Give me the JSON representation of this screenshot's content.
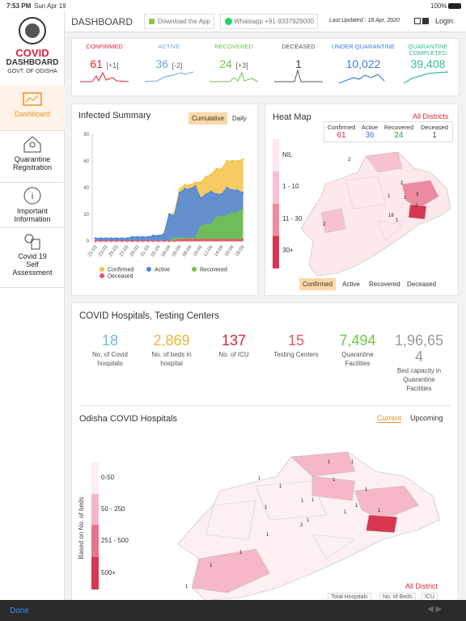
{
  "status_bar": {
    "time": "7:53 PM",
    "date": "Sun Apr 19",
    "battery": "100%"
  },
  "sidebar": {
    "logo_title": "COVID",
    "logo_subtitle": "DASHBOARD",
    "logo_caption": "GOVT. OF ODISHA",
    "nav": [
      "Dashboard",
      "Quarantine Registration",
      "Important Information",
      "Covid 19 Self Assessment"
    ]
  },
  "header": {
    "title": "DASHBOARD",
    "download": "Download the App",
    "whatsapp": "Whatsapp +91-9337929000",
    "updated": "Last Updated : 18 Apr, 2020",
    "login": "Login"
  },
  "stats": [
    {
      "label": "CONFIRMED",
      "value": "61",
      "delta": "[+1]"
    },
    {
      "label": "ACTIVE",
      "value": "36",
      "delta": "[-2]"
    },
    {
      "label": "RECOVERED",
      "value": "24",
      "delta": "[+3]"
    },
    {
      "label": "DECEASED",
      "value": "1"
    },
    {
      "label": "UNDER QUARANTINE",
      "value": "10,022"
    },
    {
      "label": "QUARANTINE COMPLETED",
      "value": "39,408"
    }
  ],
  "infected_summary_tabs": [
    "Cumulative",
    "Daily"
  ],
  "chart_data": {
    "type": "area",
    "title": "Infected Summary",
    "categories": [
      "21-03",
      null,
      "23-03",
      null,
      "25-03",
      null,
      "27-03",
      null,
      "29-03",
      null,
      "31-03",
      null,
      "02-04",
      null,
      "04-04",
      null,
      "06-04",
      null,
      "08-04",
      null,
      "10-04",
      null,
      "12-04",
      null,
      "14-04",
      null,
      "16-04",
      null,
      "18-04"
    ],
    "series": [
      {
        "name": "Confirmed",
        "color": "#f3c246",
        "values": [
          2,
          2,
          2,
          2,
          2,
          2,
          2,
          3,
          3,
          3,
          3,
          4,
          4,
          5,
          20,
          21,
          39,
          42,
          42,
          44,
          44,
          48,
          50,
          54,
          54,
          60,
          60,
          60,
          61
        ]
      },
      {
        "name": "Active",
        "color": "#4a86e0",
        "values": [
          2,
          2,
          2,
          2,
          2,
          2,
          2,
          3,
          3,
          3,
          3,
          4,
          4,
          5,
          20,
          19,
          36,
          39,
          39,
          41,
          32,
          35,
          37,
          35,
          35,
          40,
          38,
          38,
          36
        ]
      },
      {
        "name": "Recovered",
        "color": "#72c348",
        "values": [
          0,
          0,
          0,
          0,
          0,
          0,
          0,
          0,
          0,
          0,
          0,
          0,
          0,
          0,
          0,
          2,
          2,
          2,
          2,
          2,
          11,
          12,
          12,
          18,
          18,
          19,
          21,
          21,
          24
        ]
      },
      {
        "name": "Deceased",
        "color": "#e8556a",
        "values": [
          0,
          0,
          0,
          0,
          0,
          0,
          0,
          0,
          0,
          0,
          0,
          0,
          0,
          0,
          0,
          0,
          1,
          1,
          1,
          1,
          1,
          1,
          1,
          1,
          1,
          1,
          1,
          1,
          1
        ]
      }
    ],
    "ylim": [
      0,
      80
    ],
    "yticks": [
      0,
      20,
      40,
      60,
      80
    ],
    "grid": false
  },
  "heat_map": {
    "title": "Heat Map",
    "link": "All Districts",
    "stats": [
      {
        "label": "Confirmed",
        "value": "61"
      },
      {
        "label": "Active",
        "value": "36"
      },
      {
        "label": "Recovered",
        "value": "24"
      },
      {
        "label": "Deceased",
        "value": "1"
      }
    ],
    "legend": [
      "NIL",
      "1 - 10",
      "11 - 30",
      "30+"
    ],
    "map_labels": [
      "2",
      "1",
      "2",
      "3",
      "1",
      "2",
      "18",
      "1",
      "2"
    ],
    "tabs": [
      "Confirmed",
      "Active",
      "Recovered",
      "Deceased"
    ]
  },
  "hospitals": {
    "title": "COVID Hospitals, Testing Centers",
    "items": [
      {
        "value": "18",
        "label": "No. of Covid hospitals"
      },
      {
        "value": "2,869",
        "label": "No. of beds in hospital"
      },
      {
        "value": "137",
        "label": "No. of ICU"
      },
      {
        "value": "15",
        "label": "Testing Centers"
      },
      {
        "value": "7,494",
        "label": "Quarantine Facilities"
      },
      {
        "value": "1,96,654",
        "label": "Bed capacity in Quarantine Facilities"
      }
    ],
    "map_title": "Odisha COVID Hospitals",
    "map_tabs": [
      "Current",
      "Upcoming"
    ],
    "legend_title": "Based on No. of beds",
    "legend": [
      "0-50",
      "50 - 250",
      "251 - 500",
      "500+"
    ],
    "map_labels": [
      "1",
      "1",
      "1",
      "1",
      "1",
      "1",
      "1",
      "1",
      "1",
      "1",
      "1",
      "1",
      "2",
      "1",
      "1",
      "1",
      "1",
      "1"
    ],
    "link": "All District",
    "bottom_tabs": [
      "Total Hospitals",
      "No. of Beds",
      "ICU"
    ]
  },
  "footer": {
    "done": "Done"
  }
}
